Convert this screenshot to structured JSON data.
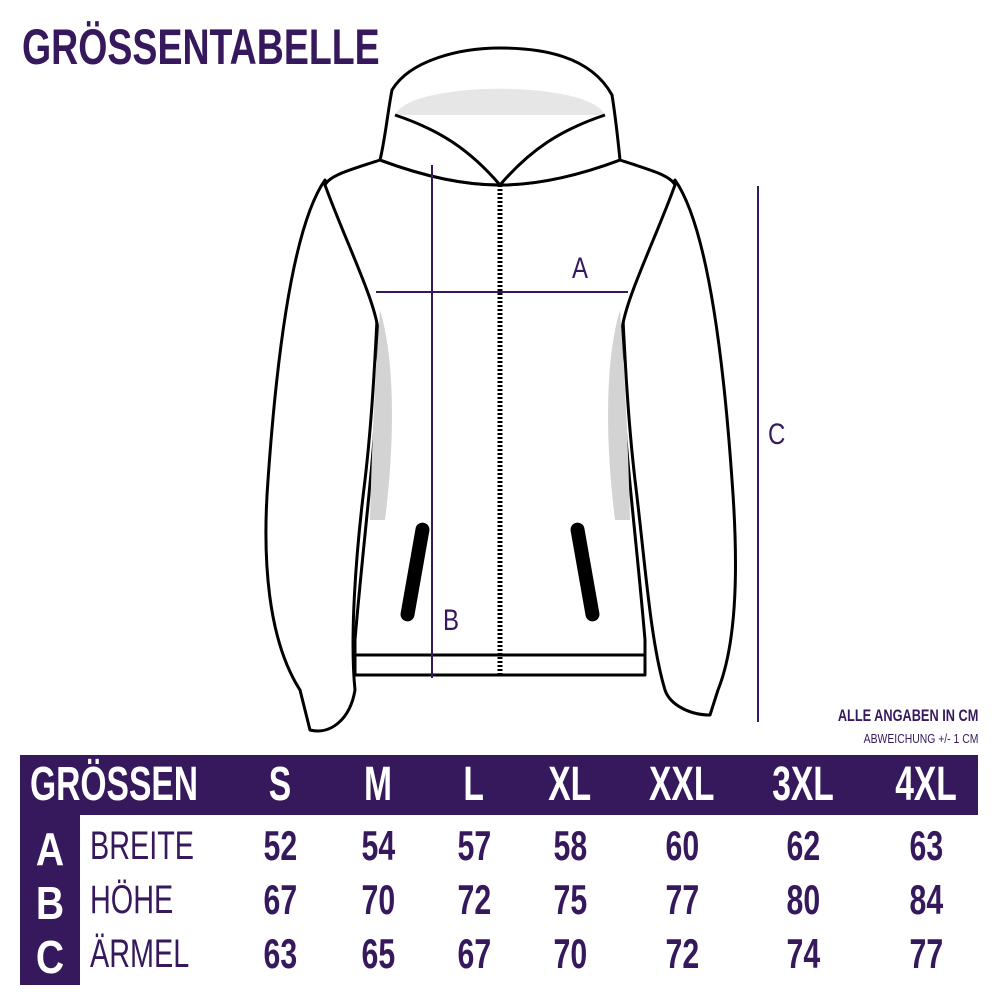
{
  "title": "GRÖSSENTABELLE",
  "measure_labels": {
    "a": "A",
    "b": "B",
    "c": "C"
  },
  "note": {
    "line1": "ALLE ANGABEN IN CM",
    "line2": "ABWEICHUNG +/- 1 CM"
  },
  "colors": {
    "accent": "#36195c",
    "shade": "#d3d3d3"
  },
  "table": {
    "header": "GRÖSSEN",
    "sizes": [
      "S",
      "M",
      "L",
      "XL",
      "XXL",
      "3XL",
      "4XL"
    ],
    "rows": [
      {
        "letter": "A",
        "name": "BREITE",
        "values": [
          "52",
          "54",
          "57",
          "58",
          "60",
          "62",
          "63"
        ]
      },
      {
        "letter": "B",
        "name": "HÖHE",
        "values": [
          "67",
          "70",
          "72",
          "75",
          "77",
          "80",
          "84"
        ]
      },
      {
        "letter": "C",
        "name": "ÄRMEL",
        "values": [
          "63",
          "65",
          "67",
          "70",
          "72",
          "74",
          "77"
        ]
      }
    ]
  }
}
